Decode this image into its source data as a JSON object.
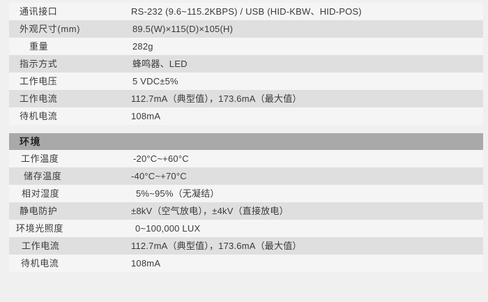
{
  "page": {
    "background_color": "#f0f0f0",
    "row_shade_color": "#dfdfdf",
    "row_light_color": "#f5f5f5",
    "section_header_bg_color": "#a9a9a9",
    "text_color": "#3a3a3a"
  },
  "spec_table": {
    "sections": [
      {
        "header": null,
        "rows": [
          {
            "label": "通讯接口",
            "value": "RS-232 (9.6~115.2KBPS) / USB (HID-KBW、HID-POS)",
            "label_indent": 0,
            "value_indent": 0
          },
          {
            "label": "外观尺寸(mm)",
            "value": "89.5(W)×115(D)×105(H)",
            "label_indent": 0,
            "value_indent": 2
          },
          {
            "label": "重量",
            "value": "282g",
            "label_indent": 14,
            "value_indent": 2
          },
          {
            "label": "指示方式",
            "value": "蜂鸣器、LED",
            "label_indent": 0,
            "value_indent": 2
          },
          {
            "label": "工作电压",
            "value": "5 VDC±5%",
            "label_indent": 0,
            "value_indent": 2
          },
          {
            "label": "工作电流",
            "value": "112.7mA（典型值），173.6mA（最大值）",
            "label_indent": 0,
            "value_indent": 0
          },
          {
            "label": "待机电流",
            "value": "108mA",
            "label_indent": 0,
            "value_indent": 0
          }
        ]
      },
      {
        "header": "环境",
        "rows": [
          {
            "label": "工作温度",
            "value": "-20°C~+60°C",
            "label_indent": 2,
            "value_indent": 3
          },
          {
            "label": "储存温度",
            "value": "-40°C~+70°C",
            "label_indent": 6,
            "value_indent": 0
          },
          {
            "label": "相对湿度",
            "value": "5%~95%（无凝结）",
            "label_indent": 3,
            "value_indent": 7
          },
          {
            "label": "静电防护",
            "value": "±8kV（空气放电），±4kV（直接放电）",
            "label_indent": 0,
            "value_indent": 0
          },
          {
            "label": "环境光照度",
            "value": "0~100,000 LUX",
            "label_indent": -5,
            "value_indent": 6
          },
          {
            "label": "工作电流",
            "value": "112.7mA（典型值），173.6mA（最大值）",
            "label_indent": 3,
            "value_indent": 0
          },
          {
            "label": "待机电流",
            "value": "108mA",
            "label_indent": 2,
            "value_indent": 0
          }
        ]
      }
    ]
  }
}
